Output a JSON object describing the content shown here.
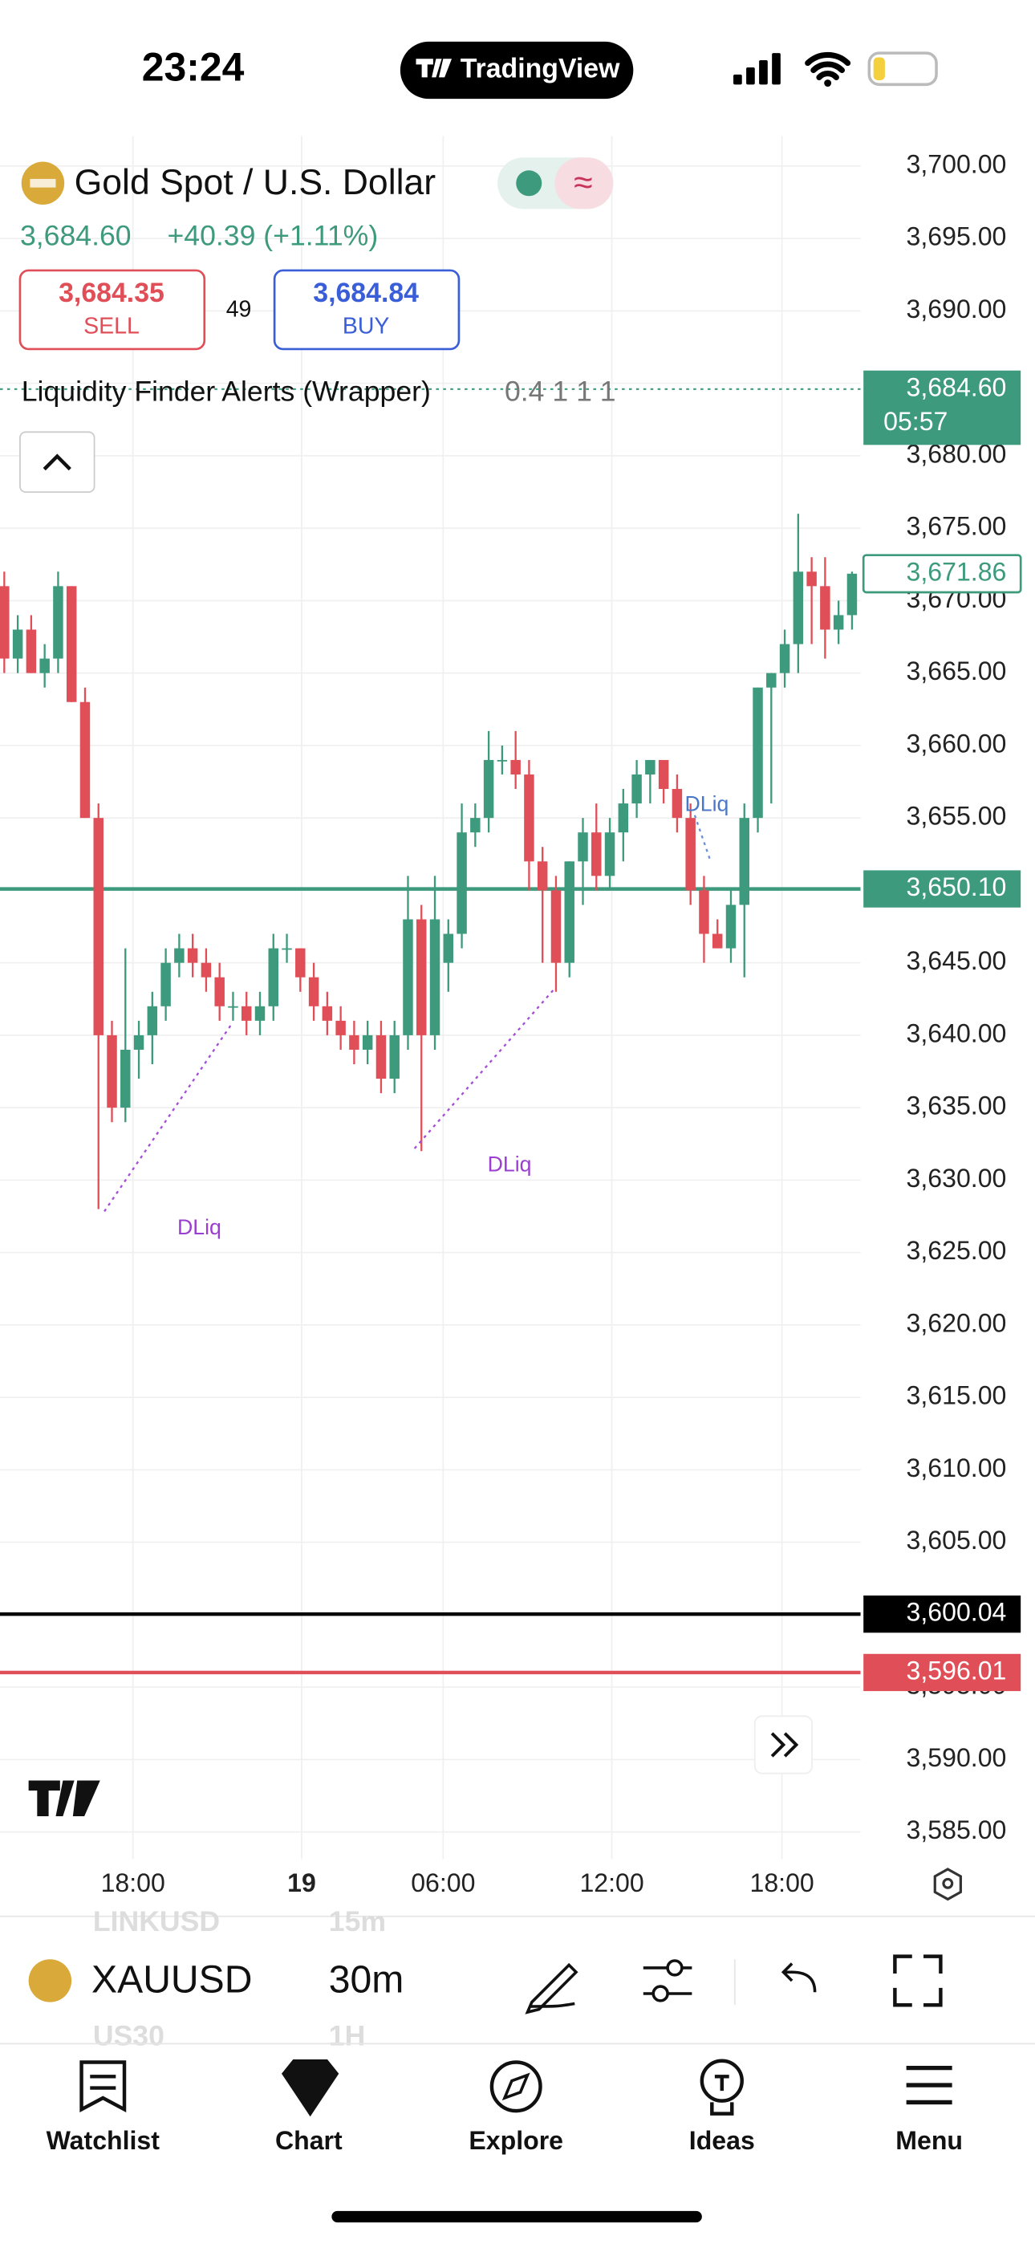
{
  "status_bar": {
    "time": "23:24",
    "app": "TradingView"
  },
  "header": {
    "symbol_name": "Gold Spot / U.S. Dollar",
    "price": "3,684.60",
    "change": "+40.39 (+1.11%)",
    "sell_price": "3,684.35",
    "sell_label": "SELL",
    "spread": "49",
    "buy_price": "3,684.84",
    "buy_label": "BUY",
    "indicator": "Liquidity Finder Alerts (Wrapper)",
    "indicator_params": "0.4 1 1 1"
  },
  "chart_data": {
    "type": "candlestick",
    "open": [
      3671,
      3666,
      3668,
      3665,
      3666,
      3671,
      3663,
      3655,
      3640,
      3635,
      3639,
      3640,
      3642,
      3645,
      3646,
      3645,
      3644,
      3642,
      3642,
      3641,
      3642,
      3646,
      3646,
      3644,
      3642,
      3641,
      3640,
      3639,
      3640,
      3637,
      3640,
      3648,
      3640,
      3645,
      3647,
      3654,
      3655,
      3659,
      3659,
      3658,
      3652,
      3650,
      3645,
      3652,
      3654,
      3651,
      3654,
      3656,
      3658,
      3659,
      3657,
      3655,
      3650,
      3647,
      3646,
      3649,
      3655,
      3664,
      3665,
      3667,
      3672,
      3671,
      3668,
      3669
    ],
    "high": [
      3672,
      3669,
      3669,
      3667,
      3672,
      3671,
      3664,
      3656,
      3641,
      3646,
      3641,
      3643,
      3646,
      3647,
      3647,
      3646,
      3645,
      3643,
      3643,
      3643,
      3647,
      3647,
      3646,
      3645,
      3643,
      3642,
      3641,
      3641,
      3641,
      3641,
      3651,
      3649,
      3651,
      3648,
      3656,
      3656,
      3661,
      3660,
      3661,
      3659,
      3653,
      3651,
      3652,
      3655,
      3656,
      3655,
      3657,
      3659,
      3659,
      3659,
      3658,
      3656,
      3651,
      3648,
      3650,
      3656,
      3664,
      3665,
      3668,
      3676,
      3673,
      3673,
      3670,
      3672
    ],
    "low": [
      3665,
      3665,
      3665,
      3664,
      3665,
      3663,
      3655,
      3628,
      3634,
      3634,
      3637,
      3638,
      3641,
      3644,
      3644,
      3643,
      3641,
      3641,
      3640,
      3640,
      3641,
      3645,
      3643,
      3641,
      3640,
      3639,
      3638,
      3638,
      3636,
      3636,
      3639,
      3632,
      3639,
      3643,
      3646,
      3653,
      3654,
      3658,
      3657,
      3650,
      3645,
      3643,
      3644,
      3649,
      3650,
      3650,
      3652,
      3655,
      3656,
      3656,
      3654,
      3649,
      3645,
      3646,
      3645,
      3644,
      3654,
      3656,
      3664,
      3665,
      3667,
      3666,
      3667,
      3668
    ],
    "close": [
      3666,
      3668,
      3665,
      3666,
      3671,
      3663,
      3655,
      3640,
      3635,
      3639,
      3640,
      3642,
      3645,
      3646,
      3645,
      3644,
      3642,
      3642,
      3641,
      3642,
      3646,
      3646,
      3644,
      3642,
      3641,
      3640,
      3639,
      3640,
      3637,
      3640,
      3648,
      3640,
      3648,
      3647,
      3654,
      3655,
      3659,
      3659,
      3658,
      3652,
      3650,
      3645,
      3652,
      3654,
      3651,
      3654,
      3656,
      3658,
      3659,
      3657,
      3655,
      3650,
      3647,
      3646,
      3649,
      3655,
      3664,
      3665,
      3667,
      3672,
      3671,
      3668,
      3669,
      3671.86
    ],
    "up_color": "#3d9a7d",
    "down_color": "#e04e57",
    "ylim": [
      3700,
      3585
    ],
    "yticks": [
      {
        "value": 3700,
        "label": "3,700.00"
      },
      {
        "value": 3695,
        "label": "3,695.00"
      },
      {
        "value": 3690,
        "label": "3,690.00"
      },
      {
        "value": 3685,
        "label": "3,685.00"
      },
      {
        "value": 3680,
        "label": "3,680.00"
      },
      {
        "value": 3675,
        "label": "3,675.00"
      },
      {
        "value": 3670,
        "label": "3,670.00"
      },
      {
        "value": 3665,
        "label": "3,665.00"
      },
      {
        "value": 3660,
        "label": "3,660.00"
      },
      {
        "value": 3655,
        "label": "3,655.00"
      },
      {
        "value": 3650,
        "label": "3,650.00"
      },
      {
        "value": 3645,
        "label": "3,645.00"
      },
      {
        "value": 3640,
        "label": "3,640.00"
      },
      {
        "value": 3635,
        "label": "3,635.00"
      },
      {
        "value": 3630,
        "label": "3,630.00"
      },
      {
        "value": 3625,
        "label": "3,625.00"
      },
      {
        "value": 3620,
        "label": "3,620.00"
      },
      {
        "value": 3615,
        "label": "3,615.00"
      },
      {
        "value": 3610,
        "label": "3,610.00"
      },
      {
        "value": 3605,
        "label": "3,605.00"
      },
      {
        "value": 3600,
        "label": "3,600.00"
      },
      {
        "value": 3595,
        "label": "3,595.00"
      },
      {
        "value": 3590,
        "label": "3,590.00"
      },
      {
        "value": 3585,
        "label": "3,585.00"
      }
    ],
    "xticks": [
      "18:00",
      "19",
      "06:00",
      "12:00",
      "18:00"
    ],
    "price_lines": [
      {
        "value": 3684.6,
        "label": "3,684.60",
        "sub_label": "05:57",
        "color": "#3d9a7d",
        "style": "dotted"
      },
      {
        "value": 3650.1,
        "label": "3,650.10",
        "color": "#3d9a7d",
        "style": "solid"
      },
      {
        "value": 3600.04,
        "label": "3,600.04",
        "color": "#000000",
        "style": "solid"
      },
      {
        "value": 3596.01,
        "label": "3,596.01",
        "color": "#e04e57",
        "style": "solid"
      }
    ],
    "last_price_label": {
      "value": 3671.86,
      "label": "3,671.86"
    },
    "annotations": [
      "DLiq",
      "DLiq",
      "DLiq"
    ]
  },
  "toolbar": {
    "symbol": "XAUUSD",
    "interval": "30m",
    "prev_symbol": "LINKUSD",
    "prev_interval": "15m",
    "next_symbol": "US30",
    "next_interval": "1H"
  },
  "nav": [
    "Watchlist",
    "Chart",
    "Explore",
    "Ideas",
    "Menu"
  ]
}
